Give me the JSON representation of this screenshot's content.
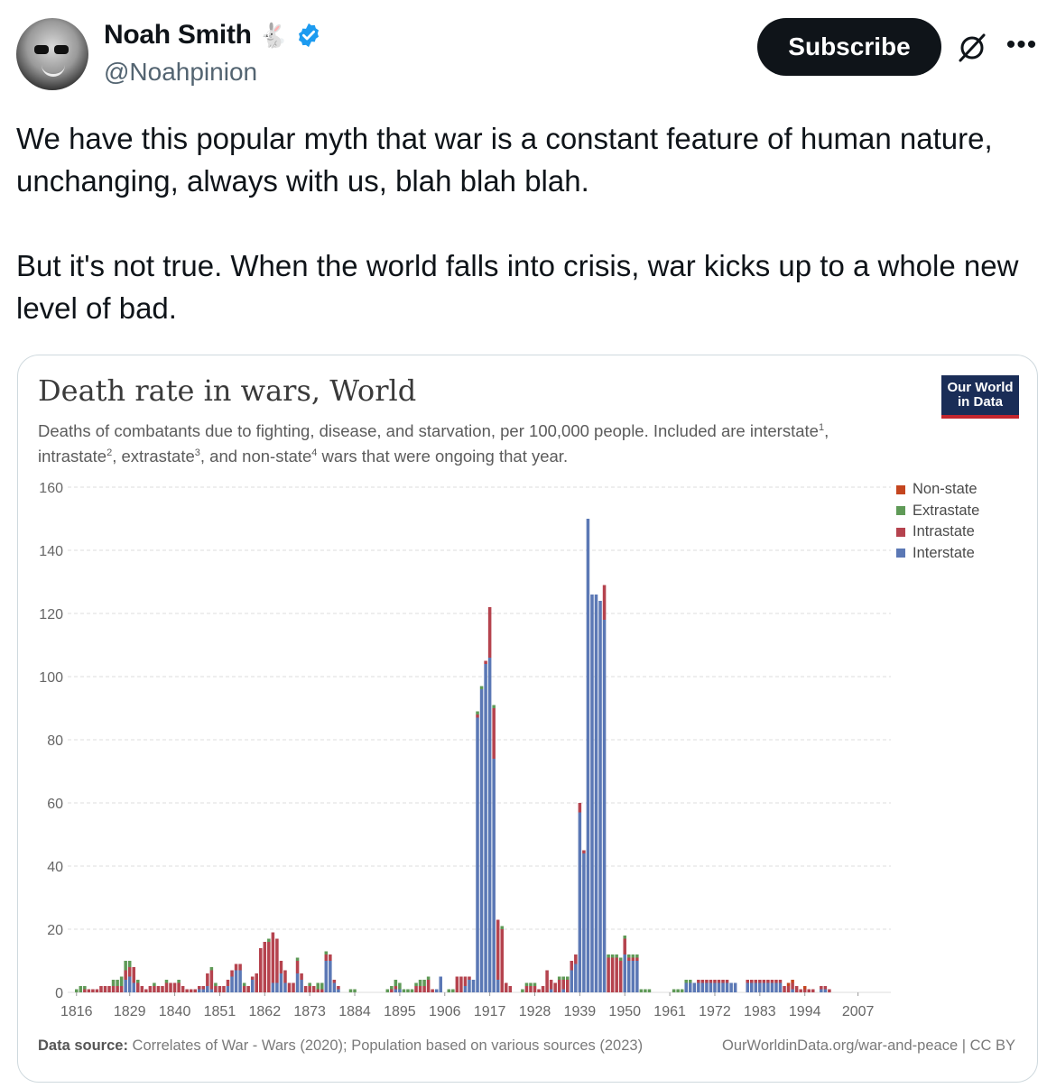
{
  "author": {
    "name": "Noah Smith",
    "emoji": "🐇",
    "handle": "@Noahpinion",
    "verified": true
  },
  "actions": {
    "subscribe_label": "Subscribe",
    "grok_icon": "grok-icon",
    "more_icon": "more-icon"
  },
  "tweet": {
    "paragraph1": "We have this popular myth that war is a constant feature of human nature, unchanging, always with us, blah blah blah.",
    "paragraph2": "But it's not true. When the world falls into crisis, war kicks up to a whole new level of bad."
  },
  "card": {
    "logo_line1": "Our World",
    "logo_line2": "in Data",
    "source_label": "Data source:",
    "source_text": " Correlates of War - Wars (2020); Population based on various sources (2023)",
    "url_text": "OurWorldinData.org/war-and-peace | CC BY",
    "subtitle_parts": {
      "a": "Deaths of combatants due to fighting, disease, and starvation, per 100,000 people. Included are interstate",
      "b": ", intrastate",
      "c": ", extrastate",
      "d": ", and non-state",
      "e": " wars that were ongoing that year."
    }
  },
  "colors": {
    "interstate": "#5b78b5",
    "intrastate": "#b5434e",
    "extrastate": "#5f9a57",
    "nonstate": "#c4451f",
    "grid": "#dddddd",
    "axis_text": "#666666"
  },
  "chart_data": {
    "type": "bar",
    "stacked": true,
    "title": "Death rate in wars, World",
    "ylim": [
      0,
      160
    ],
    "yticks": [
      "0",
      "20",
      "40",
      "60",
      "80",
      "100",
      "120",
      "140",
      "160"
    ],
    "xtick_labels": [
      "1816",
      "1829",
      "1840",
      "1851",
      "1862",
      "1873",
      "1884",
      "1895",
      "1906",
      "1917",
      "1928",
      "1939",
      "1950",
      "1961",
      "1972",
      "1983",
      "1994",
      "2007"
    ],
    "x_start": 1816,
    "x_end": 2010,
    "legend": [
      "Non-state",
      "Extrastate",
      "Intrastate",
      "Interstate"
    ],
    "legend_position": "top-right",
    "grid": true,
    "series": [
      {
        "name": "Interstate",
        "points": [
          [
            1828,
            4
          ],
          [
            1829,
            5
          ],
          [
            1830,
            3
          ],
          [
            1846,
            1
          ],
          [
            1847,
            1
          ],
          [
            1848,
            2
          ],
          [
            1849,
            1
          ],
          [
            1853,
            2
          ],
          [
            1854,
            5
          ],
          [
            1855,
            7
          ],
          [
            1856,
            7
          ],
          [
            1859,
            4
          ],
          [
            1864,
            3
          ],
          [
            1865,
            3
          ],
          [
            1866,
            6
          ],
          [
            1867,
            3
          ],
          [
            1870,
            6
          ],
          [
            1871,
            4
          ],
          [
            1877,
            10
          ],
          [
            1878,
            10
          ],
          [
            1879,
            3
          ],
          [
            1880,
            1
          ],
          [
            1894,
            1
          ],
          [
            1895,
            1
          ],
          [
            1904,
            1
          ],
          [
            1905,
            5
          ],
          [
            1911,
            2
          ],
          [
            1912,
            4
          ],
          [
            1913,
            4
          ],
          [
            1914,
            87
          ],
          [
            1915,
            96
          ],
          [
            1916,
            104
          ],
          [
            1917,
            106
          ],
          [
            1918,
            74
          ],
          [
            1919,
            4
          ],
          [
            1932,
            1
          ],
          [
            1935,
            1
          ],
          [
            1937,
            7
          ],
          [
            1938,
            9
          ],
          [
            1939,
            57
          ],
          [
            1940,
            44
          ],
          [
            1941,
            150
          ],
          [
            1942,
            126
          ],
          [
            1943,
            126
          ],
          [
            1944,
            124
          ],
          [
            1945,
            118
          ],
          [
            1950,
            12
          ],
          [
            1951,
            10
          ],
          [
            1952,
            10
          ],
          [
            1953,
            10
          ],
          [
            1965,
            3
          ],
          [
            1966,
            3
          ],
          [
            1967,
            3
          ],
          [
            1968,
            3
          ],
          [
            1969,
            3
          ],
          [
            1970,
            3
          ],
          [
            1971,
            3
          ],
          [
            1972,
            3
          ],
          [
            1973,
            3
          ],
          [
            1974,
            3
          ],
          [
            1975,
            3
          ],
          [
            1976,
            3
          ],
          [
            1977,
            3
          ],
          [
            1980,
            3
          ],
          [
            1981,
            3
          ],
          [
            1982,
            3
          ],
          [
            1983,
            3
          ],
          [
            1984,
            3
          ],
          [
            1985,
            3
          ],
          [
            1986,
            3
          ],
          [
            1987,
            3
          ],
          [
            1988,
            3
          ],
          [
            1991,
            1
          ],
          [
            1998,
            1
          ],
          [
            1999,
            1
          ]
        ]
      },
      {
        "name": "Intrastate",
        "points": [
          [
            1818,
            1
          ],
          [
            1819,
            1
          ],
          [
            1820,
            1
          ],
          [
            1821,
            1
          ],
          [
            1822,
            2
          ],
          [
            1823,
            2
          ],
          [
            1824,
            2
          ],
          [
            1825,
            2
          ],
          [
            1826,
            2
          ],
          [
            1827,
            2
          ],
          [
            1828,
            3
          ],
          [
            1829,
            3
          ],
          [
            1830,
            5
          ],
          [
            1831,
            3
          ],
          [
            1832,
            2
          ],
          [
            1833,
            1
          ],
          [
            1834,
            2
          ],
          [
            1835,
            2
          ],
          [
            1836,
            2
          ],
          [
            1837,
            2
          ],
          [
            1838,
            3
          ],
          [
            1839,
            3
          ],
          [
            1840,
            3
          ],
          [
            1841,
            3
          ],
          [
            1842,
            2
          ],
          [
            1843,
            1
          ],
          [
            1844,
            1
          ],
          [
            1845,
            1
          ],
          [
            1846,
            1
          ],
          [
            1847,
            1
          ],
          [
            1848,
            4
          ],
          [
            1849,
            6
          ],
          [
            1850,
            2
          ],
          [
            1851,
            2
          ],
          [
            1852,
            2
          ],
          [
            1853,
            2
          ],
          [
            1854,
            2
          ],
          [
            1855,
            2
          ],
          [
            1856,
            2
          ],
          [
            1857,
            2
          ],
          [
            1858,
            2
          ],
          [
            1859,
            1
          ],
          [
            1860,
            6
          ],
          [
            1861,
            14
          ],
          [
            1862,
            16
          ],
          [
            1863,
            16
          ],
          [
            1864,
            16
          ],
          [
            1865,
            14
          ],
          [
            1866,
            4
          ],
          [
            1867,
            4
          ],
          [
            1868,
            3
          ],
          [
            1869,
            3
          ],
          [
            1870,
            4
          ],
          [
            1871,
            2
          ],
          [
            1872,
            2
          ],
          [
            1873,
            2
          ],
          [
            1874,
            2
          ],
          [
            1875,
            1
          ],
          [
            1876,
            1
          ],
          [
            1877,
            2
          ],
          [
            1878,
            2
          ],
          [
            1879,
            1
          ],
          [
            1880,
            1
          ],
          [
            1893,
            1
          ],
          [
            1894,
            1
          ],
          [
            1899,
            2
          ],
          [
            1900,
            2
          ],
          [
            1901,
            2
          ],
          [
            1902,
            4
          ],
          [
            1903,
            1
          ],
          [
            1909,
            5
          ],
          [
            1910,
            5
          ],
          [
            1911,
            3
          ],
          [
            1912,
            1
          ],
          [
            1914,
            1
          ],
          [
            1916,
            1
          ],
          [
            1917,
            16
          ],
          [
            1918,
            16
          ],
          [
            1919,
            19
          ],
          [
            1920,
            20
          ],
          [
            1921,
            3
          ],
          [
            1922,
            2
          ],
          [
            1926,
            2
          ],
          [
            1927,
            2
          ],
          [
            1928,
            2
          ],
          [
            1929,
            1
          ],
          [
            1930,
            2
          ],
          [
            1931,
            7
          ],
          [
            1932,
            3
          ],
          [
            1933,
            3
          ],
          [
            1934,
            4
          ],
          [
            1935,
            3
          ],
          [
            1936,
            4
          ],
          [
            1937,
            3
          ],
          [
            1938,
            3
          ],
          [
            1939,
            3
          ],
          [
            1940,
            1
          ],
          [
            1945,
            11
          ],
          [
            1946,
            11
          ],
          [
            1947,
            11
          ],
          [
            1948,
            11
          ],
          [
            1949,
            10
          ],
          [
            1950,
            5
          ],
          [
            1951,
            1
          ],
          [
            1952,
            1
          ],
          [
            1953,
            1
          ],
          [
            1968,
            1
          ],
          [
            1969,
            1
          ],
          [
            1970,
            1
          ],
          [
            1971,
            1
          ],
          [
            1972,
            1
          ],
          [
            1973,
            1
          ],
          [
            1974,
            1
          ],
          [
            1975,
            1
          ],
          [
            1980,
            1
          ],
          [
            1981,
            1
          ],
          [
            1982,
            1
          ],
          [
            1983,
            1
          ],
          [
            1984,
            1
          ],
          [
            1985,
            1
          ],
          [
            1986,
            1
          ],
          [
            1987,
            1
          ],
          [
            1988,
            1
          ],
          [
            1989,
            2
          ],
          [
            1990,
            2
          ],
          [
            1991,
            2
          ],
          [
            1992,
            2
          ],
          [
            1993,
            1
          ],
          [
            1994,
            1
          ],
          [
            1995,
            1
          ],
          [
            1996,
            1
          ],
          [
            1998,
            1
          ],
          [
            1999,
            1
          ],
          [
            2000,
            1
          ]
        ]
      },
      {
        "name": "Extrastate",
        "points": [
          [
            1816,
            1
          ],
          [
            1817,
            2
          ],
          [
            1818,
            1
          ],
          [
            1825,
            2
          ],
          [
            1826,
            2
          ],
          [
            1827,
            3
          ],
          [
            1828,
            3
          ],
          [
            1829,
            2
          ],
          [
            1831,
            1
          ],
          [
            1835,
            1
          ],
          [
            1838,
            1
          ],
          [
            1841,
            1
          ],
          [
            1849,
            1
          ],
          [
            1850,
            1
          ],
          [
            1857,
            1
          ],
          [
            1863,
            1
          ],
          [
            1870,
            1
          ],
          [
            1873,
            1
          ],
          [
            1875,
            2
          ],
          [
            1876,
            2
          ],
          [
            1877,
            1
          ],
          [
            1883,
            1
          ],
          [
            1884,
            1
          ],
          [
            1892,
            1
          ],
          [
            1893,
            1
          ],
          [
            1894,
            2
          ],
          [
            1895,
            2
          ],
          [
            1896,
            1
          ],
          [
            1897,
            1
          ],
          [
            1898,
            1
          ],
          [
            1899,
            1
          ],
          [
            1900,
            2
          ],
          [
            1901,
            2
          ],
          [
            1902,
            1
          ],
          [
            1907,
            1
          ],
          [
            1908,
            1
          ],
          [
            1914,
            1
          ],
          [
            1915,
            1
          ],
          [
            1918,
            1
          ],
          [
            1920,
            1
          ],
          [
            1925,
            1
          ],
          [
            1926,
            1
          ],
          [
            1927,
            1
          ],
          [
            1928,
            1
          ],
          [
            1934,
            1
          ],
          [
            1935,
            1
          ],
          [
            1936,
            1
          ],
          [
            1946,
            1
          ],
          [
            1947,
            1
          ],
          [
            1948,
            1
          ],
          [
            1949,
            1
          ],
          [
            1950,
            1
          ],
          [
            1951,
            1
          ],
          [
            1952,
            1
          ],
          [
            1953,
            1
          ],
          [
            1954,
            1
          ],
          [
            1955,
            1
          ],
          [
            1956,
            1
          ],
          [
            1962,
            1
          ],
          [
            1963,
            1
          ],
          [
            1964,
            1
          ],
          [
            1965,
            1
          ],
          [
            1966,
            1
          ]
        ]
      },
      {
        "name": "Non-state",
        "points": [
          [
            1990,
            1
          ],
          [
            1991,
            1
          ],
          [
            1994,
            1
          ]
        ]
      }
    ]
  }
}
